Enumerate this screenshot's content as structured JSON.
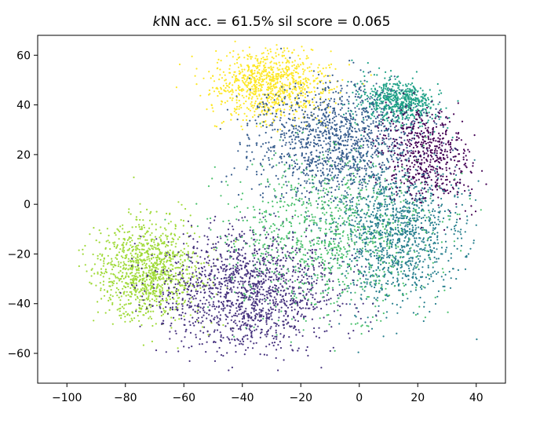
{
  "chart_data": {
    "type": "scatter",
    "title": {
      "italic_prefix": "k",
      "text": "NN acc. = 61.5% sil score = 0.065"
    },
    "xlabel": "",
    "ylabel": "",
    "xlim": [
      -110,
      50
    ],
    "ylim": [
      -72,
      68
    ],
    "x_ticks": [
      -100,
      -80,
      -60,
      -40,
      -20,
      0,
      20,
      40
    ],
    "x_tick_labels": [
      "−100",
      "−80",
      "−60",
      "−40",
      "−20",
      "0",
      "20",
      "40"
    ],
    "y_ticks": [
      -60,
      -40,
      -20,
      0,
      20,
      40,
      60
    ],
    "y_tick_labels": [
      "−60",
      "−40",
      "−20",
      "0",
      "20",
      "40",
      "60"
    ],
    "grid": false,
    "legend": "none",
    "colormap": "viridis",
    "cluster_colors": {
      "yellow": "#fde725",
      "yellow_green": "#a0da39",
      "green": "#4ac16d",
      "teal_green": "#1fa187",
      "teal": "#277f8e",
      "blue": "#365c8d",
      "indigo": "#46327e",
      "purple": "#440154"
    },
    "clusters": [
      {
        "color": "#fde725",
        "center": [
          -30,
          48
        ],
        "spread": [
          10,
          7
        ],
        "count": 900
      },
      {
        "color": "#a0da39",
        "center": [
          -72,
          -27
        ],
        "spread": [
          9,
          10
        ],
        "count": 1100
      },
      {
        "color": "#1fa187",
        "center": [
          14,
          42
        ],
        "spread": [
          7,
          5
        ],
        "count": 700
      },
      {
        "color": "#365c8d",
        "center": [
          -8,
          25
        ],
        "spread": [
          14,
          12
        ],
        "count": 1300
      },
      {
        "color": "#277f8e",
        "center": [
          12,
          -12
        ],
        "spread": [
          11,
          14
        ],
        "count": 1200
      },
      {
        "color": "#46327e",
        "center": [
          -38,
          -35
        ],
        "spread": [
          15,
          12
        ],
        "count": 1500
      },
      {
        "color": "#440154",
        "center": [
          24,
          20
        ],
        "spread": [
          8,
          10
        ],
        "count": 600
      },
      {
        "color": "#4ac16d",
        "center": [
          -12,
          -12
        ],
        "spread": [
          18,
          16
        ],
        "count": 900
      }
    ]
  }
}
